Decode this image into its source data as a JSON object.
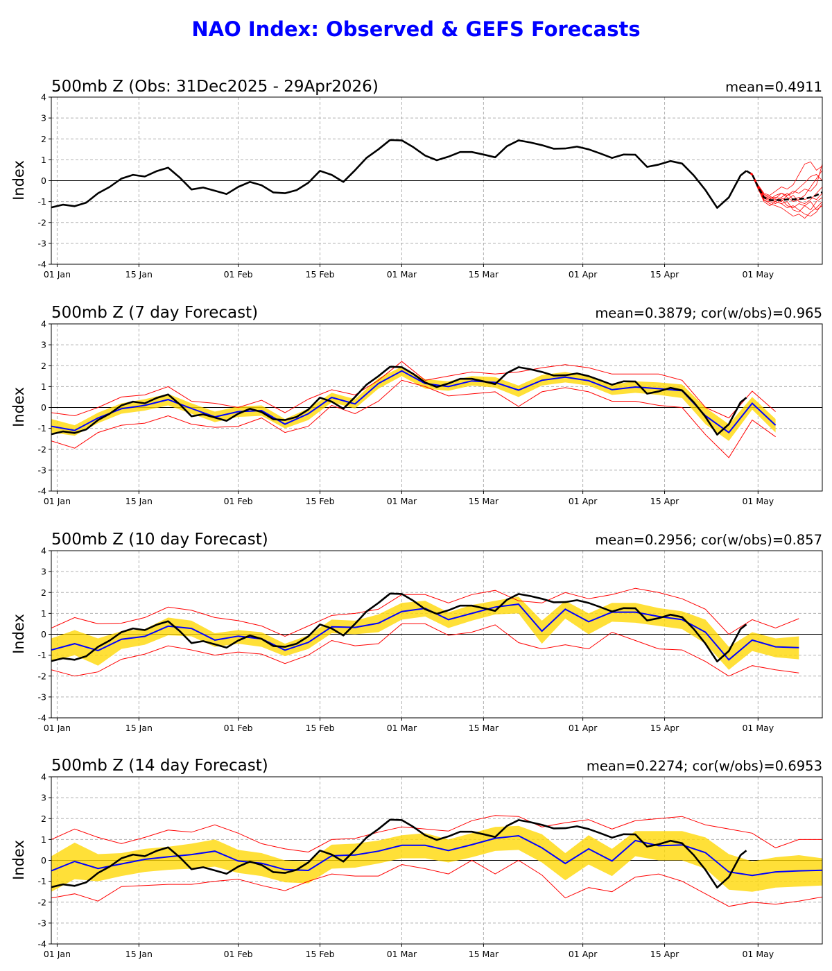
{
  "title": "NAO Index: Observed & GEFS Forecasts",
  "colors": {
    "title": "#0000FF",
    "observed": "#000000",
    "ensemble_mean": "#0000FF",
    "band": "#FFD700",
    "extremes": "#FF0000",
    "members": "#FF0000",
    "grid": "#b0b0b0"
  },
  "observed": {
    "dates": [
      "2025-12-31",
      "2026-01-02",
      "2026-01-04",
      "2026-01-06",
      "2026-01-08",
      "2026-01-10",
      "2026-01-12",
      "2026-01-14",
      "2026-01-16",
      "2026-01-18",
      "2026-01-20",
      "2026-01-22",
      "2026-01-24",
      "2026-01-26",
      "2026-01-28",
      "2026-01-30",
      "2026-02-01",
      "2026-02-03",
      "2026-02-05",
      "2026-02-07",
      "2026-02-09",
      "2026-02-11",
      "2026-02-13",
      "2026-02-15",
      "2026-02-17",
      "2026-02-19",
      "2026-02-21",
      "2026-02-23",
      "2026-02-25",
      "2026-02-27",
      "2026-03-01",
      "2026-03-03",
      "2026-03-05",
      "2026-03-07",
      "2026-03-09",
      "2026-03-11",
      "2026-03-13",
      "2026-03-15",
      "2026-03-17",
      "2026-03-19",
      "2026-03-21",
      "2026-03-23",
      "2026-03-25",
      "2026-03-27",
      "2026-03-29",
      "2026-03-31",
      "2026-04-02",
      "2026-04-04",
      "2026-04-06",
      "2026-04-08",
      "2026-04-10",
      "2026-04-12",
      "2026-04-14",
      "2026-04-16",
      "2026-04-18",
      "2026-04-20",
      "2026-04-22",
      "2026-04-24",
      "2026-04-26",
      "2026-04-28",
      "2026-04-29"
    ],
    "values": [
      -1.28,
      -1.15,
      -1.22,
      -1.05,
      -0.6,
      -0.3,
      0.1,
      0.28,
      0.2,
      0.45,
      0.62,
      0.15,
      -0.42,
      -0.33,
      -0.48,
      -0.64,
      -0.3,
      -0.06,
      -0.22,
      -0.56,
      -0.6,
      -0.45,
      -0.1,
      0.47,
      0.28,
      -0.06,
      0.5,
      1.1,
      1.5,
      1.95,
      1.93,
      1.6,
      1.2,
      0.98,
      1.15,
      1.37,
      1.37,
      1.25,
      1.12,
      1.65,
      1.93,
      1.83,
      1.7,
      1.53,
      1.54,
      1.63,
      1.5,
      1.3,
      1.09,
      1.25,
      1.24,
      0.66,
      0.77,
      0.94,
      0.82,
      0.25,
      -0.45,
      -1.3,
      -0.8,
      0.25,
      0.47
    ]
  },
  "forecast_dates": [
    "2025-12-31",
    "2026-01-04",
    "2026-01-08",
    "2026-01-12",
    "2026-01-16",
    "2026-01-20",
    "2026-01-24",
    "2026-01-28",
    "2026-02-01",
    "2026-02-05",
    "2026-02-09",
    "2026-02-13",
    "2026-02-17",
    "2026-02-21",
    "2026-02-25",
    "2026-03-01",
    "2026-03-05",
    "2026-03-09",
    "2026-03-13",
    "2026-03-17",
    "2026-03-21",
    "2026-03-25",
    "2026-03-29",
    "2026-04-02",
    "2026-04-06",
    "2026-04-10",
    "2026-04-14",
    "2026-04-18",
    "2026-04-22",
    "2026-04-26",
    "2026-04-30",
    "2026-05-04",
    "2026-05-08",
    "2026-05-12"
  ],
  "chart_data": [
    {
      "type": "line",
      "title": "500mb Z (Obs: 31Dec2025 - 29Apr2026)",
      "stats": "mean=0.4911",
      "ylabel": "Index",
      "ylim": [
        -4,
        4
      ],
      "xlim": [
        "2025-12-31",
        "2026-05-12"
      ],
      "grid": true,
      "yticks": [
        -4,
        -3,
        -2,
        -1,
        0,
        1,
        2,
        3,
        4
      ],
      "xticks": [
        {
          "date": "2026-01-01",
          "label": "01 Jan"
        },
        {
          "date": "2026-01-15",
          "label": "15 Jan"
        },
        {
          "date": "2026-02-01",
          "label": "01 Feb"
        },
        {
          "date": "2026-02-15",
          "label": "15 Feb"
        },
        {
          "date": "2026-03-01",
          "label": "01 Mar"
        },
        {
          "date": "2026-03-15",
          "label": "15 Mar"
        },
        {
          "date": "2026-04-01",
          "label": "01 Apr"
        },
        {
          "date": "2026-04-15",
          "label": "15 Apr"
        },
        {
          "date": "2026-05-01",
          "label": "01 May"
        }
      ],
      "ensemble": {
        "dates": [
          "2026-04-29",
          "2026-04-30",
          "2026-05-01",
          "2026-05-02",
          "2026-05-03",
          "2026-05-04",
          "2026-05-05",
          "2026-05-06",
          "2026-05-07",
          "2026-05-08",
          "2026-05-09",
          "2026-05-10",
          "2026-05-11",
          "2026-05-12"
        ],
        "mean": [
          0.47,
          0.3,
          -0.3,
          -0.8,
          -0.93,
          -0.93,
          -0.93,
          -0.9,
          -0.9,
          -0.88,
          -0.85,
          -0.8,
          -0.7,
          -0.55
        ],
        "members": [
          [
            0.47,
            0.35,
            -0.2,
            -0.6,
            -0.7,
            -0.5,
            -0.3,
            -0.4,
            -0.2,
            0.3,
            0.8,
            0.9,
            0.5,
            0.7
          ],
          [
            0.47,
            0.25,
            -0.4,
            -0.9,
            -1.1,
            -1.2,
            -1.3,
            -1.5,
            -1.7,
            -1.6,
            -1.8,
            -1.5,
            -1.3,
            -1.0
          ],
          [
            0.47,
            0.3,
            -0.3,
            -0.8,
            -0.9,
            -0.7,
            -0.6,
            -0.8,
            -1.0,
            -0.9,
            -0.7,
            -0.3,
            0.1,
            0.5
          ],
          [
            0.47,
            0.28,
            -0.35,
            -0.95,
            -1.0,
            -1.1,
            -0.9,
            -1.2,
            -1.3,
            -1.1,
            -1.2,
            -1.4,
            -1.0,
            -0.8
          ],
          [
            0.47,
            0.32,
            -0.25,
            -0.7,
            -0.8,
            -0.9,
            -1.0,
            -0.7,
            -0.5,
            -0.6,
            -0.4,
            -0.5,
            -0.2,
            0.8
          ],
          [
            0.47,
            0.27,
            -0.38,
            -1.0,
            -1.2,
            -1.0,
            -1.1,
            -1.0,
            -1.4,
            -1.5,
            -1.2,
            -1.0,
            -1.4,
            -1.2
          ],
          [
            0.47,
            0.31,
            -0.28,
            -0.75,
            -0.85,
            -0.8,
            -0.85,
            -0.9,
            -0.7,
            -1.0,
            -1.1,
            -0.9,
            -0.6,
            -0.3
          ],
          [
            0.47,
            0.29,
            -0.32,
            -0.85,
            -0.95,
            -1.0,
            -1.1,
            -1.3,
            -1.2,
            -1.4,
            -1.6,
            -1.7,
            -1.5,
            -1.1
          ],
          [
            0.47,
            0.3,
            -0.27,
            -0.8,
            -0.9,
            -0.95,
            -0.8,
            -0.6,
            -0.9,
            -0.8,
            -0.9,
            -0.8,
            -0.9,
            -0.6
          ],
          [
            0.47,
            0.33,
            -0.22,
            -0.65,
            -0.75,
            -0.85,
            -0.6,
            -0.7,
            -0.6,
            -0.35,
            -0.1,
            0.2,
            0.3,
            0.0
          ]
        ]
      }
    },
    {
      "type": "line",
      "title": "500mb Z (7 day Forecast)",
      "stats": "mean=0.3879; cor(w/obs)=0.965",
      "ylabel": "Index",
      "ylim": [
        -4,
        4
      ],
      "xlim": [
        "2025-12-31",
        "2026-05-12"
      ],
      "grid": true,
      "yticks": [
        -4,
        -3,
        -2,
        -1,
        0,
        1,
        2,
        3,
        4
      ],
      "xticks": [
        {
          "date": "2026-01-01",
          "label": "01 Jan"
        },
        {
          "date": "2026-01-15",
          "label": "15 Jan"
        },
        {
          "date": "2026-02-01",
          "label": "01 Feb"
        },
        {
          "date": "2026-02-15",
          "label": "15 Feb"
        },
        {
          "date": "2026-03-01",
          "label": "01 Mar"
        },
        {
          "date": "2026-03-15",
          "label": "15 Mar"
        },
        {
          "date": "2026-04-01",
          "label": "01 Apr"
        },
        {
          "date": "2026-04-15",
          "label": "15 Apr"
        },
        {
          "date": "2026-05-01",
          "label": "01 May"
        }
      ],
      "forecast": {
        "mean": [
          -0.9,
          -1.1,
          -0.5,
          -0.06,
          0.1,
          0.38,
          -0.05,
          -0.45,
          -0.2,
          -0.15,
          -0.8,
          -0.3,
          0.48,
          0.17,
          1.15,
          1.75,
          1.15,
          1.0,
          1.27,
          1.2,
          0.83,
          1.3,
          1.45,
          1.28,
          0.85,
          0.98,
          0.9,
          0.8,
          -0.4,
          -1.2,
          0.2,
          -0.85
        ],
        "band_low": [
          -1.2,
          -1.35,
          -0.75,
          -0.3,
          -0.15,
          0.1,
          -0.3,
          -0.7,
          -0.45,
          -0.4,
          -1.0,
          -0.6,
          0.25,
          -0.05,
          0.9,
          1.5,
          0.9,
          0.8,
          1.05,
          0.95,
          0.5,
          1.05,
          1.2,
          1.05,
          0.6,
          0.7,
          0.6,
          0.45,
          -0.8,
          -1.6,
          -0.1,
          -1.2
        ],
        "band_high": [
          -0.55,
          -0.85,
          -0.25,
          0.2,
          0.4,
          0.65,
          0.2,
          -0.2,
          0.05,
          0.1,
          -0.55,
          -0.05,
          0.7,
          0.4,
          1.4,
          1.95,
          1.35,
          1.25,
          1.5,
          1.45,
          1.05,
          1.55,
          1.7,
          1.5,
          1.1,
          1.25,
          1.2,
          1.1,
          0.0,
          -0.8,
          0.5,
          -0.55
        ],
        "min": [
          -1.6,
          -1.95,
          -1.2,
          -0.85,
          -0.75,
          -0.4,
          -0.8,
          -0.95,
          -0.9,
          -0.5,
          -1.2,
          -0.9,
          0.1,
          -0.3,
          0.3,
          1.3,
          1.0,
          0.55,
          0.65,
          0.75,
          0.05,
          0.75,
          0.95,
          0.75,
          0.3,
          0.3,
          0.1,
          0.0,
          -1.3,
          -2.4,
          -0.6,
          -1.4
        ],
        "max": [
          -0.25,
          -0.4,
          0.0,
          0.5,
          0.6,
          1.0,
          0.3,
          0.2,
          0.0,
          0.35,
          -0.25,
          0.4,
          0.85,
          0.6,
          1.3,
          2.2,
          1.3,
          1.5,
          1.7,
          1.6,
          1.7,
          1.9,
          2.05,
          1.9,
          1.6,
          1.6,
          1.6,
          1.3,
          0.0,
          -0.5,
          0.78,
          -0.2
        ]
      }
    },
    {
      "type": "line",
      "title": "500mb Z (10 day Forecast)",
      "stats": "mean=0.2956; cor(w/obs)=0.857",
      "ylabel": "Index",
      "ylim": [
        -4,
        4
      ],
      "xlim": [
        "2025-12-31",
        "2026-05-12"
      ],
      "grid": true,
      "yticks": [
        -4,
        -3,
        -2,
        -1,
        0,
        1,
        2,
        3,
        4
      ],
      "xticks": [
        {
          "date": "2026-01-01",
          "label": "01 Jan"
        },
        {
          "date": "2026-01-15",
          "label": "15 Jan"
        },
        {
          "date": "2026-02-01",
          "label": "01 Feb"
        },
        {
          "date": "2026-02-15",
          "label": "15 Feb"
        },
        {
          "date": "2026-03-01",
          "label": "01 Mar"
        },
        {
          "date": "2026-03-15",
          "label": "15 Mar"
        },
        {
          "date": "2026-04-01",
          "label": "01 Apr"
        },
        {
          "date": "2026-04-15",
          "label": "15 Apr"
        },
        {
          "date": "2026-05-01",
          "label": "01 May"
        }
      ],
      "forecast": {
        "mean": [
          -0.75,
          -0.45,
          -0.78,
          -0.24,
          -0.1,
          0.39,
          0.28,
          -0.28,
          -0.09,
          -0.22,
          -0.76,
          -0.39,
          0.36,
          0.33,
          0.53,
          1.09,
          1.24,
          0.7,
          1.0,
          1.3,
          1.44,
          0.15,
          1.2,
          0.6,
          1.06,
          1.06,
          0.85,
          0.7,
          0.1,
          -1.22,
          -0.28,
          -0.6,
          -0.64
        ],
        "band_low": [
          -1.3,
          -1.0,
          -1.5,
          -0.7,
          -0.5,
          -0.05,
          -0.1,
          -0.6,
          -0.45,
          -0.6,
          -1.05,
          -0.7,
          0.05,
          0.0,
          0.1,
          0.7,
          0.85,
          0.3,
          0.65,
          0.95,
          1.0,
          -0.45,
          0.75,
          0.0,
          0.6,
          0.55,
          0.4,
          0.25,
          -0.45,
          -1.7,
          -0.8,
          -1.1,
          -1.2
        ],
        "band_high": [
          -0.2,
          0.2,
          -0.2,
          0.15,
          0.25,
          0.8,
          0.65,
          0.05,
          0.2,
          0.1,
          -0.45,
          -0.05,
          0.7,
          0.65,
          0.95,
          1.5,
          1.6,
          1.05,
          1.4,
          1.6,
          1.8,
          0.65,
          1.6,
          1.0,
          1.5,
          1.5,
          1.25,
          1.1,
          0.7,
          -0.6,
          0.1,
          -0.2,
          -0.1
        ],
        "min": [
          -1.7,
          -2.0,
          -1.8,
          -1.2,
          -0.95,
          -0.55,
          -0.75,
          -1.0,
          -0.85,
          -0.95,
          -1.4,
          -1.0,
          -0.3,
          -0.55,
          -0.45,
          0.5,
          0.5,
          -0.05,
          0.1,
          0.45,
          -0.4,
          -0.7,
          -0.5,
          -0.7,
          0.1,
          -0.3,
          -0.7,
          -0.75,
          -1.3,
          -2.0,
          -1.5,
          -1.7,
          -1.85
        ],
        "max": [
          0.3,
          0.8,
          0.5,
          0.53,
          0.8,
          1.3,
          1.15,
          0.8,
          0.65,
          0.4,
          -0.1,
          0.4,
          0.9,
          1.0,
          1.2,
          1.9,
          1.9,
          1.5,
          1.9,
          2.1,
          1.6,
          1.5,
          2.0,
          1.7,
          1.9,
          2.2,
          2.0,
          1.7,
          1.2,
          0.0,
          0.7,
          0.3,
          0.75
        ]
      }
    },
    {
      "type": "line",
      "title": "500mb Z (14 day Forecast)",
      "stats": "mean=0.2274; cor(w/obs)=0.6953",
      "ylabel": "Index",
      "ylim": [
        -4,
        4
      ],
      "xlim": [
        "2025-12-31",
        "2026-05-12"
      ],
      "grid": true,
      "yticks": [
        -4,
        -3,
        -2,
        -1,
        0,
        1,
        2,
        3,
        4
      ],
      "xticks": [
        {
          "date": "2026-01-01",
          "label": "01 Jan"
        },
        {
          "date": "2026-01-15",
          "label": "15 Jan"
        },
        {
          "date": "2026-02-01",
          "label": "01 Feb"
        },
        {
          "date": "2026-02-15",
          "label": "15 Feb"
        },
        {
          "date": "2026-03-01",
          "label": "01 Mar"
        },
        {
          "date": "2026-03-15",
          "label": "15 Mar"
        },
        {
          "date": "2026-04-01",
          "label": "01 Apr"
        },
        {
          "date": "2026-04-15",
          "label": "15 Apr"
        },
        {
          "date": "2026-05-01",
          "label": "01 May"
        }
      ],
      "forecast": {
        "mean": [
          -0.5,
          -0.05,
          -0.39,
          -0.17,
          0.05,
          0.17,
          0.28,
          0.44,
          -0.03,
          -0.14,
          -0.44,
          -0.48,
          0.22,
          0.26,
          0.44,
          0.72,
          0.72,
          0.47,
          0.75,
          1.06,
          1.18,
          0.6,
          -0.15,
          0.55,
          -0.03,
          0.95,
          0.7,
          0.74,
          0.37,
          -0.55,
          -0.72,
          -0.55,
          -0.5,
          -0.47
        ],
        "band_low": [
          -1.5,
          -0.9,
          -1.0,
          -0.75,
          -0.55,
          -0.45,
          -0.4,
          -0.3,
          -0.6,
          -0.75,
          -1.05,
          -1.1,
          -0.4,
          -0.35,
          -0.15,
          0.1,
          0.1,
          -0.1,
          0.15,
          0.45,
          0.5,
          -0.1,
          -0.95,
          -0.2,
          -0.75,
          0.2,
          0.0,
          0.0,
          -0.4,
          -1.4,
          -1.5,
          -1.3,
          -1.25,
          -1.2
        ],
        "band_high": [
          0.2,
          0.85,
          0.3,
          0.35,
          0.55,
          0.65,
          0.8,
          1.0,
          0.5,
          0.35,
          0.0,
          -0.05,
          0.75,
          0.8,
          0.95,
          1.2,
          1.3,
          1.0,
          1.3,
          1.6,
          1.65,
          1.25,
          0.35,
          1.2,
          0.55,
          1.4,
          1.4,
          1.4,
          1.1,
          0.3,
          -0.05,
          0.15,
          0.25,
          0.1
        ],
        "min": [
          -1.8,
          -1.6,
          -1.95,
          -1.25,
          -1.2,
          -1.15,
          -1.15,
          -1.0,
          -0.9,
          -1.2,
          -1.45,
          -1.0,
          -0.65,
          -0.75,
          -0.75,
          -0.2,
          -0.4,
          -0.65,
          0.0,
          -0.65,
          0.0,
          -0.7,
          -1.8,
          -1.3,
          -1.5,
          -0.8,
          -0.65,
          -1.0,
          -1.6,
          -2.2,
          -2.0,
          -2.1,
          -1.95,
          -1.75
        ],
        "max": [
          1.0,
          1.5,
          1.1,
          0.8,
          1.1,
          1.45,
          1.35,
          1.7,
          1.3,
          0.8,
          0.55,
          0.4,
          1.0,
          1.05,
          1.35,
          1.6,
          1.5,
          1.4,
          1.9,
          2.15,
          2.1,
          1.6,
          1.8,
          1.95,
          1.5,
          1.9,
          2.0,
          2.1,
          1.7,
          1.5,
          1.3,
          0.6,
          1.0,
          1.0
        ]
      }
    }
  ]
}
